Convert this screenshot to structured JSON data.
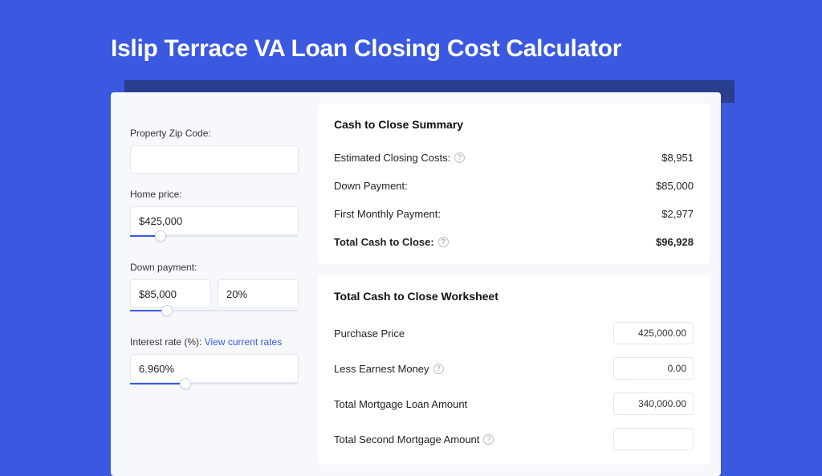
{
  "colors": {
    "page_bg": "#3a59e0",
    "card_bg": "#f6f8fb",
    "panel_bg": "#ffffff",
    "shadow_bg": "#2a3e8f",
    "border": "#e3e7ee",
    "link": "#3a59e0",
    "text": "#222222",
    "title": "#ffffff"
  },
  "title": "Islip Terrace VA Loan Closing Cost Calculator",
  "form": {
    "zip_label": "Property Zip Code:",
    "zip_value": "",
    "home_price_label": "Home price:",
    "home_price_value": "$425,000",
    "home_price_slider_pct": 18,
    "down_payment_label": "Down payment:",
    "down_payment_value": "$85,000",
    "down_payment_pct": "20%",
    "down_payment_slider_pct": 22,
    "interest_label": "Interest rate (%): ",
    "interest_link": "View current rates",
    "interest_value": "6.960%",
    "interest_slider_pct": 33
  },
  "summary": {
    "title": "Cash to Close Summary",
    "rows": [
      {
        "label": "Estimated Closing Costs:",
        "help": true,
        "value": "$8,951",
        "bold": false
      },
      {
        "label": "Down Payment:",
        "help": false,
        "value": "$85,000",
        "bold": false
      },
      {
        "label": "First Monthly Payment:",
        "help": false,
        "value": "$2,977",
        "bold": false
      },
      {
        "label": "Total Cash to Close:",
        "help": true,
        "value": "$96,928",
        "bold": true
      }
    ]
  },
  "worksheet": {
    "title": "Total Cash to Close Worksheet",
    "rows": [
      {
        "label": "Purchase Price",
        "help": false,
        "value": "425,000.00"
      },
      {
        "label": "Less Earnest Money",
        "help": true,
        "value": "0.00"
      },
      {
        "label": "Total Mortgage Loan Amount",
        "help": false,
        "value": "340,000.00"
      },
      {
        "label": "Total Second Mortgage Amount",
        "help": true,
        "value": ""
      }
    ]
  }
}
